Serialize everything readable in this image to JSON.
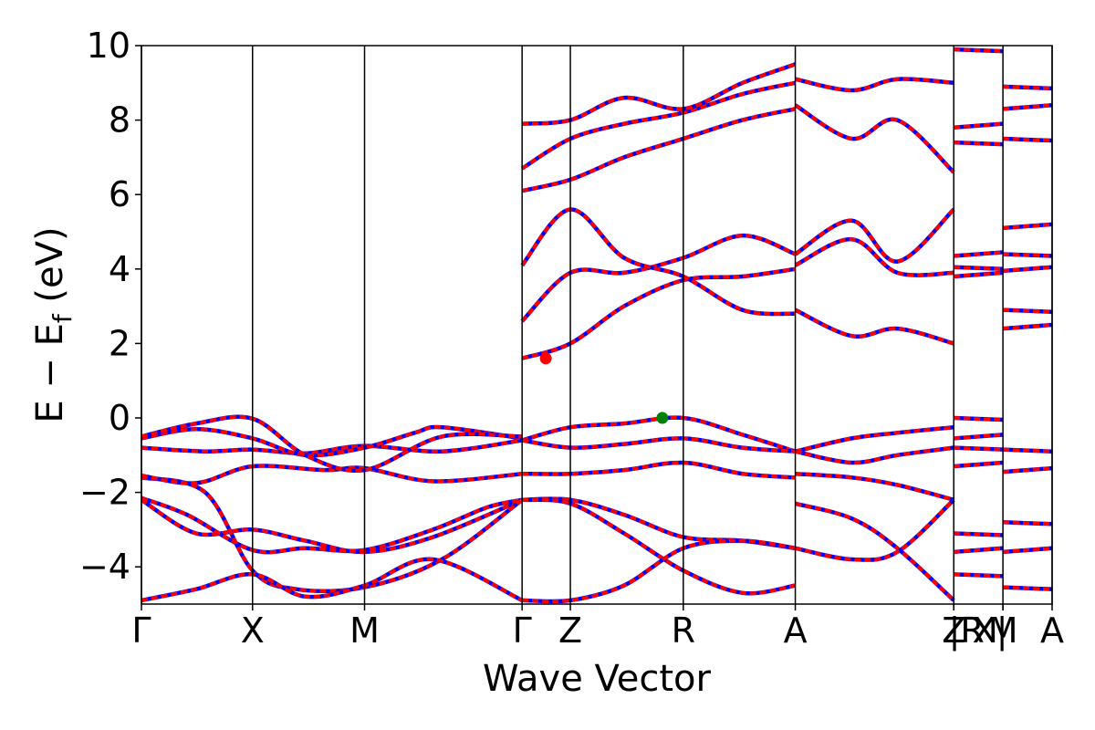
{
  "chart_data": {
    "type": "line",
    "xlabel": "Wave Vector",
    "ylabel": "E − E",
    "ylabel_sub": "f",
    "ylabel_unit": " (eV)",
    "ylim": [
      -5,
      10
    ],
    "yticks": [
      {
        "value": 10,
        "label": "10"
      },
      {
        "value": 8,
        "label": "8"
      },
      {
        "value": 6,
        "label": "6"
      },
      {
        "value": 4,
        "label": "4"
      },
      {
        "value": 2,
        "label": "2"
      },
      {
        "value": 0,
        "label": "0"
      },
      {
        "value": -2,
        "label": "−2"
      },
      {
        "value": -4,
        "label": "−4"
      }
    ],
    "xlim": [
      0,
      10
    ],
    "high_symmetry_points": [
      {
        "x": 0.0,
        "label": "Γ"
      },
      {
        "x": 1.22,
        "label": "X"
      },
      {
        "x": 2.45,
        "label": "M"
      },
      {
        "x": 4.18,
        "label": "Γ"
      },
      {
        "x": 4.71,
        "label": "Z"
      },
      {
        "x": 5.95,
        "label": "R"
      },
      {
        "x": 7.18,
        "label": "A"
      },
      {
        "x": 8.92,
        "label": "Z"
      },
      {
        "x": 8.92,
        "label": "|R"
      },
      {
        "x": 9.46,
        "label": "X|"
      },
      {
        "x": 9.46,
        "label": "M"
      },
      {
        "x": 10.0,
        "label": "A"
      }
    ],
    "band_colors": {
      "primary": "#ff0000",
      "overlay": "#0000ff"
    },
    "cbm": {
      "x": 4.44,
      "y": 1.6,
      "color": "#ff0000"
    },
    "vbm": {
      "x": 5.72,
      "y": 0.0,
      "color": "#008000"
    },
    "series": [
      {
        "x": [
          0,
          0.6,
          1.22,
          1.8,
          2.45,
          3.2,
          4.18
        ],
        "values": [
          -2.2,
          -3.1,
          -3.0,
          -3.3,
          -3.6,
          -3.2,
          -2.2
        ]
      },
      {
        "x": [
          0,
          0.5,
          1.22,
          1.8,
          2.45,
          3.2,
          3.8,
          4.18
        ],
        "values": [
          -2.15,
          -2.6,
          -3.55,
          -3.5,
          -3.55,
          -3.0,
          -2.4,
          -2.2
        ]
      },
      {
        "x": [
          0,
          0.7,
          1.22,
          1.7,
          2.45,
          3.3,
          4.18
        ],
        "values": [
          -1.6,
          -2.0,
          -4.1,
          -4.6,
          -4.55,
          -3.8,
          -2.2
        ]
      },
      {
        "x": [
          0,
          0.6,
          1.22,
          2.0,
          2.45,
          3.2,
          4.18
        ],
        "values": [
          -1.55,
          -1.75,
          -1.3,
          -1.4,
          -1.35,
          -1.7,
          -1.5
        ]
      },
      {
        "x": [
          0,
          0.7,
          1.22,
          1.8,
          2.45,
          3.3,
          4.18
        ],
        "values": [
          -0.8,
          -0.9,
          -0.85,
          -0.95,
          -0.75,
          -0.9,
          -0.6
        ]
      },
      {
        "x": [
          0,
          0.6,
          1.22,
          1.8,
          2.45,
          3.0,
          3.3,
          4.18
        ],
        "values": [
          -0.55,
          -0.3,
          -0.55,
          -1.0,
          -0.8,
          -0.4,
          -0.25,
          -0.55
        ]
      },
      {
        "x": [
          0,
          0.6,
          1.22,
          1.8,
          2.45,
          3.3,
          4.18
        ],
        "values": [
          -0.5,
          -0.15,
          -0.02,
          -1.0,
          -1.4,
          -0.5,
          -0.5
        ]
      },
      {
        "x": [
          0,
          0.6,
          1.22,
          1.8,
          2.45,
          3.2,
          4.18
        ],
        "values": [
          -4.9,
          -4.6,
          -4.2,
          -4.8,
          -4.5,
          -3.8,
          -4.9
        ]
      },
      {
        "x": [
          4.18,
          4.71,
          5.3,
          5.95,
          6.6,
          7.18
        ],
        "values": [
          -0.6,
          -0.25,
          -0.15,
          0.0,
          -0.45,
          -0.9
        ]
      },
      {
        "x": [
          4.18,
          4.71,
          5.3,
          5.95,
          6.6,
          7.18
        ],
        "values": [
          -0.6,
          -0.8,
          -0.7,
          -0.55,
          -0.8,
          -0.9
        ]
      },
      {
        "x": [
          4.18,
          4.71,
          5.3,
          5.95,
          6.6,
          7.18
        ],
        "values": [
          -1.5,
          -1.5,
          -1.4,
          -1.2,
          -1.5,
          -1.6
        ]
      },
      {
        "x": [
          4.18,
          4.71,
          5.3,
          5.95,
          6.6,
          7.18
        ],
        "values": [
          -2.2,
          -2.2,
          -2.6,
          -3.2,
          -3.3,
          -3.5
        ]
      },
      {
        "x": [
          4.18,
          4.71,
          5.3,
          5.95,
          6.6,
          7.18
        ],
        "values": [
          -2.2,
          -2.3,
          -3.1,
          -4.1,
          -4.7,
          -4.5
        ]
      },
      {
        "x": [
          4.18,
          4.71,
          5.3,
          5.95,
          6.6,
          7.18
        ],
        "values": [
          -4.9,
          -4.9,
          -4.5,
          -3.5,
          -3.3,
          -3.5
        ]
      },
      {
        "x": [
          4.18,
          4.71,
          5.3,
          5.95,
          6.6,
          7.18
        ],
        "values": [
          1.6,
          2.0,
          3.0,
          3.7,
          3.8,
          4.0
        ]
      },
      {
        "x": [
          4.18,
          4.71,
          5.3,
          5.95,
          6.6,
          7.18
        ],
        "values": [
          2.6,
          3.9,
          3.9,
          4.3,
          4.9,
          4.4
        ]
      },
      {
        "x": [
          4.18,
          4.71,
          5.3,
          5.95,
          6.6,
          7.18
        ],
        "values": [
          4.1,
          5.6,
          4.3,
          3.8,
          2.9,
          2.8
        ]
      },
      {
        "x": [
          4.18,
          4.71,
          5.3,
          5.95,
          6.6,
          7.18
        ],
        "values": [
          6.1,
          6.4,
          7.0,
          7.5,
          8.0,
          8.3
        ]
      },
      {
        "x": [
          4.18,
          4.71,
          5.3,
          5.95,
          6.6,
          7.18
        ],
        "values": [
          6.7,
          7.5,
          7.9,
          8.2,
          8.7,
          9.0
        ]
      },
      {
        "x": [
          4.18,
          4.71,
          5.3,
          5.95,
          6.6,
          7.18
        ],
        "values": [
          7.9,
          8.0,
          8.6,
          8.3,
          9.0,
          9.5
        ]
      },
      {
        "x": [
          7.18,
          7.8,
          8.3,
          8.92
        ],
        "values": [
          -0.9,
          -0.55,
          -0.4,
          -0.25
        ]
      },
      {
        "x": [
          7.18,
          7.8,
          8.3,
          8.92
        ],
        "values": [
          -0.9,
          -1.2,
          -1.0,
          -0.8
        ]
      },
      {
        "x": [
          7.18,
          7.8,
          8.3,
          8.92
        ],
        "values": [
          -1.5,
          -1.6,
          -1.8,
          -2.2
        ]
      },
      {
        "x": [
          7.18,
          7.8,
          8.3,
          8.92
        ],
        "values": [
          -2.3,
          -2.7,
          -3.5,
          -4.9
        ]
      },
      {
        "x": [
          7.18,
          7.8,
          8.3,
          8.92
        ],
        "values": [
          -3.5,
          -3.8,
          -3.6,
          -2.2
        ]
      },
      {
        "x": [
          7.18,
          7.8,
          8.3,
          8.92
        ],
        "values": [
          2.9,
          2.2,
          2.4,
          2.0
        ]
      },
      {
        "x": [
          7.18,
          7.8,
          8.3,
          8.92
        ],
        "values": [
          4.4,
          5.3,
          4.2,
          5.6
        ]
      },
      {
        "x": [
          7.18,
          7.8,
          8.3,
          8.92
        ],
        "values": [
          4.1,
          4.8,
          3.9,
          3.9
        ]
      },
      {
        "x": [
          7.18,
          7.8,
          8.3,
          8.92
        ],
        "values": [
          8.4,
          7.5,
          8.0,
          6.6
        ]
      },
      {
        "x": [
          7.18,
          7.8,
          8.3,
          8.92
        ],
        "values": [
          9.1,
          8.8,
          9.1,
          9.0
        ]
      }
    ]
  }
}
